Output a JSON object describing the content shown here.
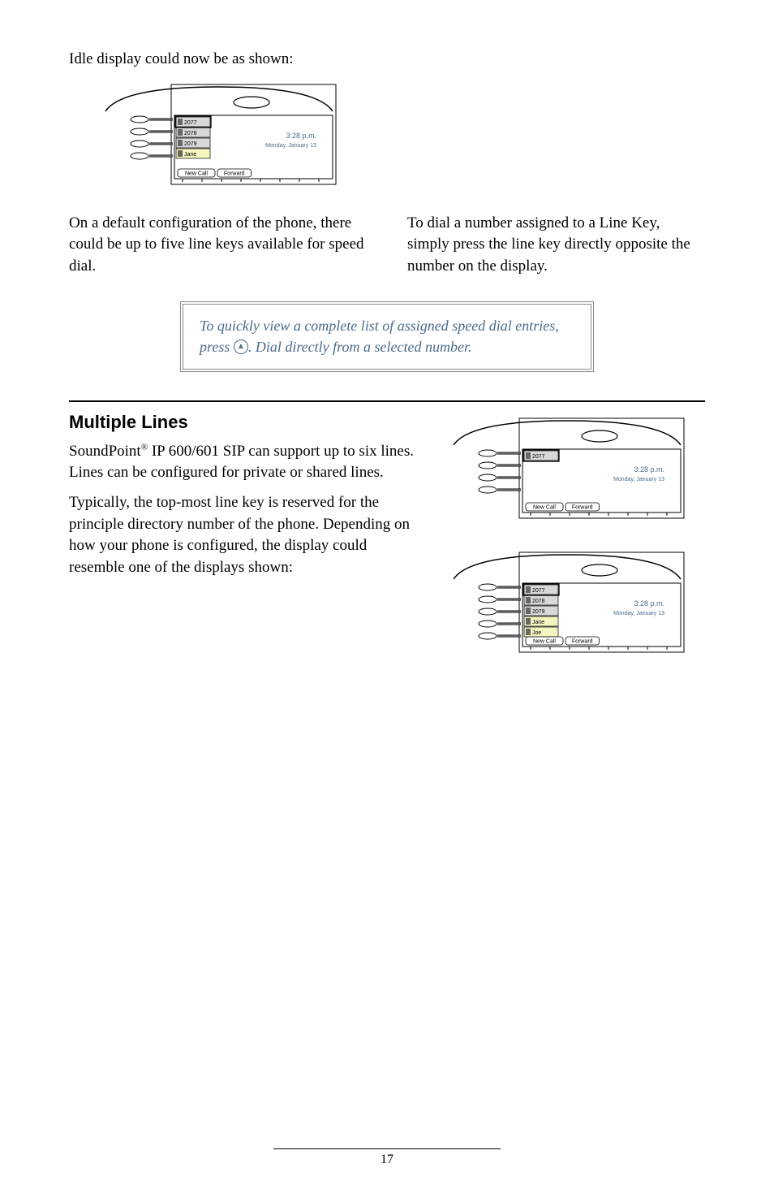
{
  "intro": "Idle display could now be as shown:",
  "col_left": "On a default configuration of the phone, there could be up to five line keys available for speed dial.",
  "col_right": "To dial a number assigned to a Line Key, simply press the line key directly opposite the number on the display.",
  "tip_part1": "To quickly view a complete list of assigned speed dial entries, press ",
  "tip_symbol": "▲",
  "tip_part2": ".  Dial directly from a selected number.",
  "section_heading": "Multiple Lines",
  "section_p1_a": "SoundPoint",
  "section_p1_sup": "®",
  "section_p1_b": " IP 600/601 SIP can support up to six lines.  Lines can be configured for private or shared lines.",
  "section_p2": "Typically, the top-most line key is reserved for the principle directory number of the phone. Depending on how your phone is configured, the display could resemble one of the displays shown:",
  "page_number": "17",
  "phone_display": {
    "lines_diagram1": [
      "2077",
      "2078",
      "2079",
      "Jane"
    ],
    "lines_diagram2": [
      "2077"
    ],
    "lines_diagram3": [
      "2077",
      "2078",
      "2079",
      "Jane",
      "Joe"
    ],
    "time": "3:28 p.m.",
    "date": "Monday, January 13",
    "softkeys": [
      "New Call",
      "Forward"
    ],
    "colors": {
      "outline": "#000000",
      "screen_fill": "#ffffff",
      "label_fill": "#d8d8d8",
      "icon_fill": "#666666",
      "text": "#000000",
      "time_color": "#4a6b8a"
    },
    "fonts": {
      "label_size": 7,
      "time_size": 9,
      "date_size": 7,
      "softkey_size": 7
    }
  }
}
